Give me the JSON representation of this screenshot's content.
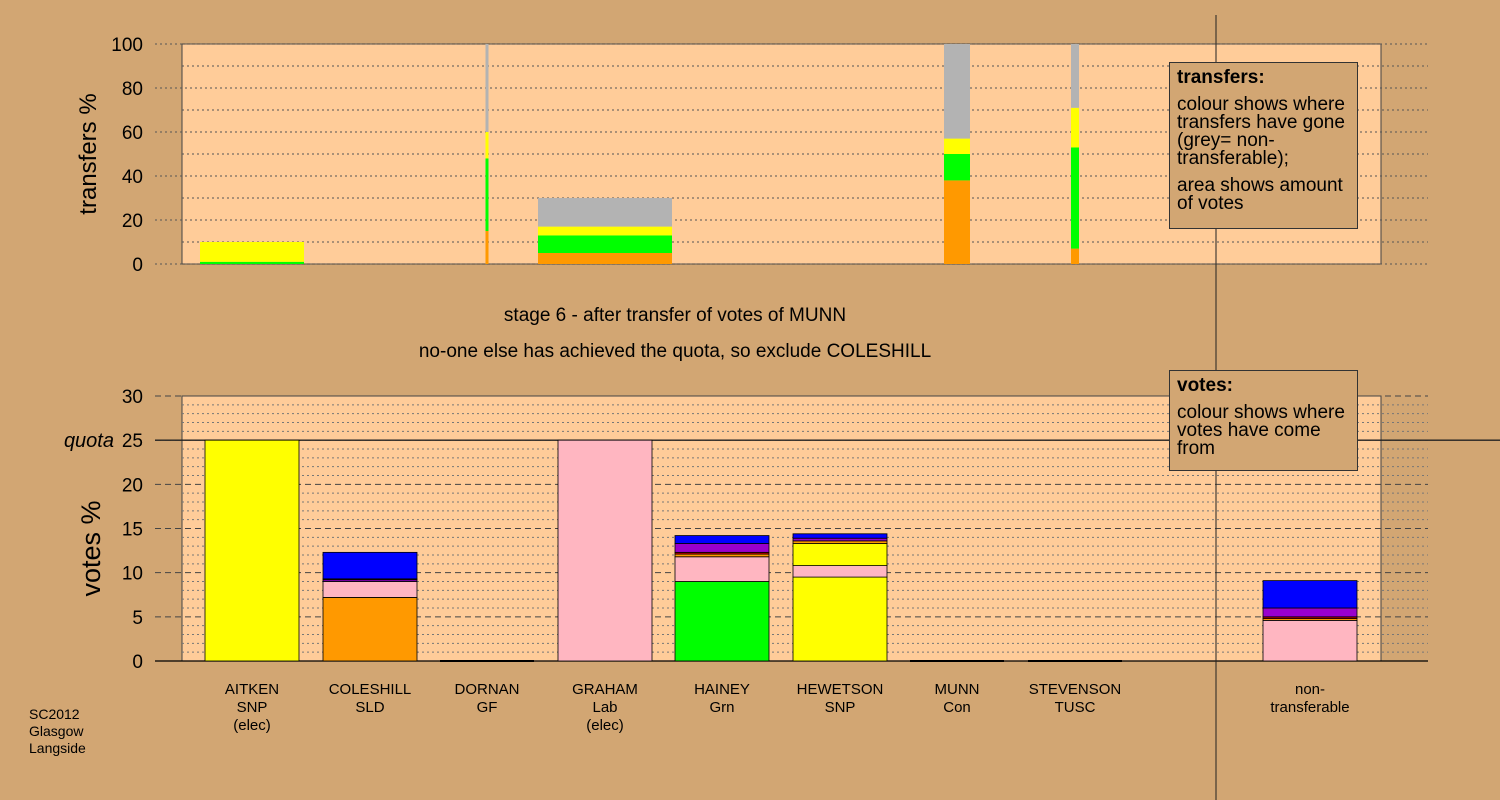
{
  "colors": {
    "background": "#d2a673",
    "plot_background": "#ffcc99",
    "SNP": "#ffff00",
    "SLD": "#ff9900",
    "Lab": "#ffb6c1",
    "Grn": "#00ff00",
    "Con": "#0000ff",
    "GF": "#9900cc",
    "TUSC": "#cc0000",
    "nontransferable": "#b3b3b3"
  },
  "stage_text": {
    "line1": "stage 6 - after transfer of votes of MUNN",
    "line2": "no-one else has achieved the quota, so exclude COLESHILL"
  },
  "legend_transfers": {
    "title": "transfers:",
    "p1": "colour shows where transfers have gone (grey= non-transferable);",
    "p2": "area shows amount of votes"
  },
  "legend_votes": {
    "title": "votes:",
    "p1": "colour shows where votes have come from"
  },
  "footer": {
    "line1": "SC2012",
    "line2": "Glasgow",
    "line3": "Langside"
  },
  "candidates": [
    {
      "name": "AITKEN",
      "party": "SNP",
      "note": "(elec)"
    },
    {
      "name": "COLESHILL",
      "party": "SLD",
      "note": ""
    },
    {
      "name": "DORNAN",
      "party": "GF",
      "note": ""
    },
    {
      "name": "GRAHAM",
      "party": "Lab",
      "note": "(elec)"
    },
    {
      "name": "HAINEY",
      "party": "Grn",
      "note": ""
    },
    {
      "name": "HEWETSON",
      "party": "SNP",
      "note": ""
    },
    {
      "name": "MUNN",
      "party": "Con",
      "note": ""
    },
    {
      "name": "STEVENSON",
      "party": "TUSC",
      "note": ""
    },
    {
      "name": "non-",
      "party": "transferable",
      "note": ""
    }
  ],
  "chart_data": [
    {
      "type": "bar",
      "title": "",
      "ylabel": "transfers %",
      "ylim": [
        0,
        100
      ],
      "yticks": [
        0,
        20,
        40,
        60,
        80,
        100
      ],
      "note": "stacked transfer columns; width shows amount of votes transferred",
      "columns": [
        {
          "candidate": "AITKEN",
          "segments": [
            {
              "color": "Grn",
              "value": 1
            },
            {
              "color": "SNP",
              "value": 9
            }
          ]
        },
        {
          "candidate": "DORNAN",
          "segments": [
            {
              "color": "SLD",
              "value": 15
            },
            {
              "color": "Grn",
              "value": 33
            },
            {
              "color": "SNP",
              "value": 12
            },
            {
              "color": "nontransferable",
              "value": 40
            }
          ]
        },
        {
          "candidate": "GRAHAM",
          "segments": [
            {
              "color": "SLD",
              "value": 5
            },
            {
              "color": "Grn",
              "value": 8
            },
            {
              "color": "SNP",
              "value": 4
            },
            {
              "color": "nontransferable",
              "value": 13
            }
          ]
        },
        {
          "candidate": "MUNN",
          "segments": [
            {
              "color": "SLD",
              "value": 38
            },
            {
              "color": "Grn",
              "value": 12
            },
            {
              "color": "SNP",
              "value": 7
            },
            {
              "color": "nontransferable",
              "value": 43
            }
          ]
        },
        {
          "candidate": "STEVENSON",
          "segments": [
            {
              "color": "SLD",
              "value": 7
            },
            {
              "color": "Grn",
              "value": 46
            },
            {
              "color": "SNP",
              "value": 18
            },
            {
              "color": "nontransferable",
              "value": 29
            }
          ]
        }
      ]
    },
    {
      "type": "bar",
      "title": "",
      "ylabel": "votes %",
      "ylim": [
        0,
        30
      ],
      "yticks": [
        0,
        5,
        10,
        15,
        20,
        25,
        30
      ],
      "quota": 25,
      "quota_label": "quota",
      "stacked": true,
      "categories": [
        "AITKEN",
        "COLESHILL",
        "DORNAN",
        "GRAHAM",
        "HAINEY",
        "HEWETSON",
        "MUNN",
        "STEVENSON",
        "non-transferable"
      ],
      "stacks": [
        [
          {
            "color": "SNP",
            "value": 25
          }
        ],
        [
          {
            "color": "SLD",
            "value": 7.2
          },
          {
            "color": "Lab",
            "value": 1.8
          },
          {
            "color": "GF",
            "value": 0.2
          },
          {
            "color": "TUSC",
            "value": 0.1
          },
          {
            "color": "Con",
            "value": 3.0
          }
        ],
        [],
        [
          {
            "color": "Lab",
            "value": 25
          }
        ],
        [
          {
            "color": "Grn",
            "value": 9.0
          },
          {
            "color": "Lab",
            "value": 2.8
          },
          {
            "color": "SLD",
            "value": 0.3
          },
          {
            "color": "TUSC",
            "value": 0.2
          },
          {
            "color": "GF",
            "value": 1.0
          },
          {
            "color": "Con",
            "value": 0.9
          }
        ],
        [
          {
            "color": "SNP",
            "value": 9.5
          },
          {
            "color": "Lab",
            "value": 1.3
          },
          {
            "color": "SNP",
            "value": 2.5
          },
          {
            "color": "SLD",
            "value": 0.3
          },
          {
            "color": "GF",
            "value": 0.3
          },
          {
            "color": "Con",
            "value": 0.5
          }
        ],
        [],
        [],
        [
          {
            "color": "Lab",
            "value": 4.6
          },
          {
            "color": "SLD",
            "value": 0.2
          },
          {
            "color": "TUSC",
            "value": 0.2
          },
          {
            "color": "GF",
            "value": 1.0
          },
          {
            "color": "Con",
            "value": 3.1
          }
        ]
      ]
    }
  ]
}
